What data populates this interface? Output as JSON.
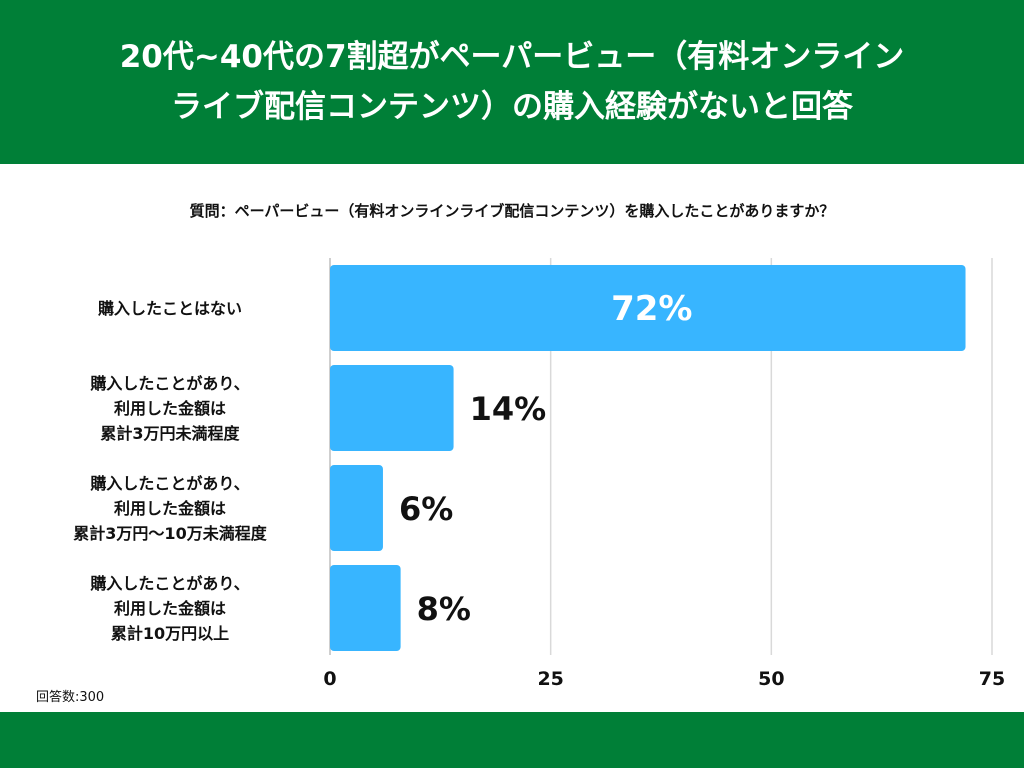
{
  "header": {
    "line1": "20代~40代の7割超がペーパービュー（有料オンライン",
    "line2": "ライブ配信コンテンツ）の購入経験がないと回答"
  },
  "question": "質問：ペーパービュー（有料オンラインライブ配信コンテンツ）を購入したことがありますか？",
  "note": "回答数:300",
  "colors": {
    "bar": "#38b5ff",
    "header": "#007f37",
    "grid": "#d9d9d9"
  },
  "chart_data": {
    "type": "bar",
    "orientation": "horizontal",
    "categories": [
      [
        "購入したことはない"
      ],
      [
        "購入したことがあり、",
        "利用した金額は",
        "累計3万円未満程度"
      ],
      [
        "購入したことがあり、",
        "利用した金額は",
        "累計3万円〜10万未満程度"
      ],
      [
        "購入したことがあり、",
        "利用した金額は",
        "累計10万円以上"
      ]
    ],
    "values": [
      72,
      14,
      6,
      8
    ],
    "value_labels": [
      "72%",
      "14%",
      "6%",
      "8%"
    ],
    "xlim": [
      0,
      75
    ],
    "xticks": [
      0,
      25,
      50,
      75
    ],
    "grid": true,
    "title": "",
    "xlabel": "",
    "ylabel": ""
  }
}
